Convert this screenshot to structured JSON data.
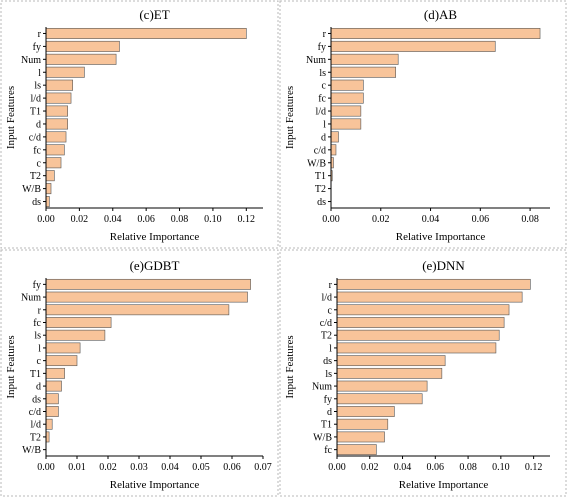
{
  "chart_data": [
    {
      "type": "bar",
      "orientation": "horizontal",
      "title": "(c)ET",
      "xlabel": "Relative Importance",
      "ylabel": "Input Features",
      "xlim": [
        0,
        0.13
      ],
      "xticks": [
        "0.00",
        "0.02",
        "0.04",
        "0.06",
        "0.08",
        "0.10",
        "0.12"
      ],
      "categories": [
        "r",
        "fy",
        "Num",
        "l",
        "ls",
        "l/d",
        "T1",
        "d",
        "c/d",
        "fc",
        "c",
        "T2",
        "W/B",
        "ds"
      ],
      "values": [
        0.12,
        0.044,
        0.042,
        0.023,
        0.016,
        0.015,
        0.013,
        0.013,
        0.012,
        0.011,
        0.009,
        0.005,
        0.003,
        0.002
      ],
      "bar_color": "#f8c49a"
    },
    {
      "type": "bar",
      "orientation": "horizontal",
      "title": "(d)AB",
      "xlabel": "Relative Importance",
      "ylabel": "Input Features",
      "xlim": [
        0,
        0.088
      ],
      "xticks": [
        "0.00",
        "0.02",
        "0.04",
        "0.06",
        "0.08"
      ],
      "categories": [
        "r",
        "fy",
        "Num",
        "ls",
        "c",
        "fc",
        "l/d",
        "l",
        "d",
        "c/d",
        "W/B",
        "T1",
        "T2",
        "ds"
      ],
      "values": [
        0.084,
        0.066,
        0.027,
        0.026,
        0.013,
        0.013,
        0.012,
        0.012,
        0.003,
        0.002,
        0.001,
        0.0005,
        0.0,
        0.0
      ],
      "bar_color": "#f8c49a"
    },
    {
      "type": "bar",
      "orientation": "horizontal",
      "title": "(e)GDBT",
      "xlabel": "Relative Importance",
      "ylabel": "Input Features",
      "xlim": [
        0,
        0.07
      ],
      "xticks": [
        "0.00",
        "0.01",
        "0.02",
        "0.03",
        "0.04",
        "0.05",
        "0.06",
        "0.07"
      ],
      "categories": [
        "fy",
        "Num",
        "r",
        "fc",
        "ls",
        "l",
        "c",
        "T1",
        "d",
        "ds",
        "c/d",
        "l/d",
        "T2",
        "W/B"
      ],
      "values": [
        0.066,
        0.065,
        0.059,
        0.021,
        0.019,
        0.011,
        0.01,
        0.006,
        0.005,
        0.004,
        0.004,
        0.002,
        0.001,
        0.0
      ],
      "bar_color": "#f8c49a"
    },
    {
      "type": "bar",
      "orientation": "horizontal",
      "title": "(e)DNN",
      "xlabel": "Relative Importance",
      "ylabel": "Input Features",
      "xlim": [
        0,
        0.13
      ],
      "xticks": [
        "0.00",
        "0.02",
        "0.04",
        "0.06",
        "0.08",
        "0.10",
        "0.12"
      ],
      "categories": [
        "r",
        "l/d",
        "c",
        "c/d",
        "T2",
        "l",
        "ds",
        "ls",
        "Num",
        "fy",
        "d",
        "T1",
        "W/B",
        "fc"
      ],
      "values": [
        0.118,
        0.113,
        0.105,
        0.102,
        0.099,
        0.097,
        0.066,
        0.064,
        0.055,
        0.052,
        0.035,
        0.031,
        0.029,
        0.024
      ],
      "bar_color": "#f8c49a"
    }
  ]
}
